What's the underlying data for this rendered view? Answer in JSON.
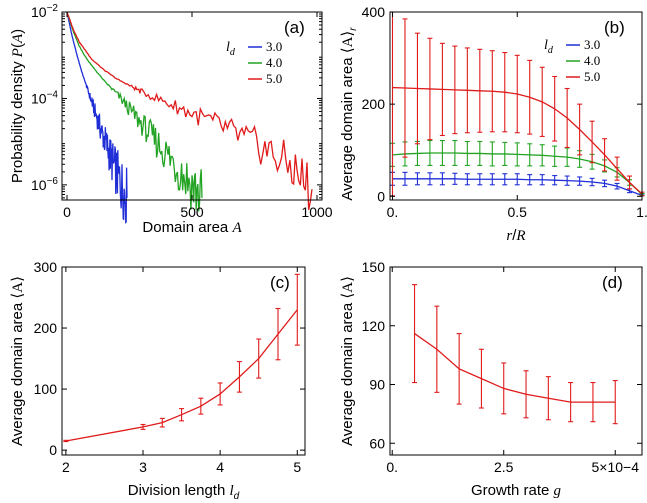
{
  "chart_data": [
    {
      "id": "a",
      "type": "line",
      "panel_label": "(a)",
      "xlabel": "Domain area A",
      "ylabel": "Probability density P(A)",
      "xlim": [
        -20,
        1020
      ],
      "ylim_log10": [
        -6.35,
        -2
      ],
      "y_scale": "log",
      "x_ticks": [
        0,
        500,
        1000
      ],
      "y_ticks": [
        {
          "label": "10−2",
          "exp": -2
        },
        {
          "label": "10−4",
          "exp": -4
        },
        {
          "label": "10−6",
          "exp": -6
        }
      ],
      "legend_title": "l_d",
      "legend_position": "top-right",
      "series": [
        {
          "name": "3.0",
          "color": "#1f2ed6",
          "x": [
            0,
            20,
            40,
            60,
            80,
            100,
            120,
            140,
            160,
            180,
            200,
            220,
            240
          ],
          "y_log10": [
            -2.0,
            -2.55,
            -3.0,
            -3.4,
            -3.75,
            -4.1,
            -4.45,
            -4.8,
            -5.1,
            -5.45,
            -5.75,
            -6.05,
            -6.3
          ]
        },
        {
          "name": "4.0",
          "color": "#23a323",
          "x": [
            0,
            25,
            50,
            75,
            100,
            150,
            200,
            250,
            300,
            350,
            400,
            450,
            500,
            540
          ],
          "y_log10": [
            -2.0,
            -2.45,
            -2.8,
            -3.05,
            -3.25,
            -3.6,
            -3.9,
            -4.25,
            -4.6,
            -4.95,
            -5.3,
            -5.65,
            -6.0,
            -6.3
          ]
        },
        {
          "name": "5.0",
          "color": "#e01b1b",
          "x": [
            0,
            25,
            50,
            75,
            100,
            150,
            200,
            250,
            300,
            400,
            500,
            600,
            700,
            800,
            900,
            980
          ],
          "y_log10": [
            -2.0,
            -2.4,
            -2.7,
            -2.9,
            -3.1,
            -3.35,
            -3.55,
            -3.7,
            -3.85,
            -4.1,
            -4.35,
            -4.6,
            -4.9,
            -5.2,
            -5.6,
            -6.1
          ]
        }
      ]
    },
    {
      "id": "b",
      "type": "line",
      "panel_label": "(b)",
      "xlabel": "r/R",
      "ylabel": "Average domain area ⟨A⟩r",
      "xlim": [
        -0.01,
        1.0
      ],
      "ylim": [
        -8,
        400
      ],
      "x_ticks": [
        {
          "value": 0,
          "label": "0."
        },
        {
          "value": 0.5,
          "label": "0.5"
        },
        {
          "value": 1.0,
          "label": "1."
        }
      ],
      "y_ticks": [
        0,
        200,
        400
      ],
      "legend_title": "l_d",
      "legend_position": "top-right",
      "series": [
        {
          "name": "3.0",
          "color": "#1f2ed6",
          "x": [
            0.0,
            0.05,
            0.1,
            0.15,
            0.2,
            0.25,
            0.3,
            0.35,
            0.4,
            0.45,
            0.5,
            0.55,
            0.6,
            0.65,
            0.7,
            0.75,
            0.8,
            0.85,
            0.9,
            0.95,
            1.0
          ],
          "y": [
            38,
            38,
            38,
            38,
            38,
            38,
            37,
            37,
            37,
            37,
            37,
            36,
            36,
            35,
            34,
            33,
            31,
            28,
            22,
            12,
            2
          ],
          "err": [
            14,
            14,
            13,
            13,
            13,
            12,
            12,
            12,
            12,
            12,
            12,
            11,
            11,
            10,
            10,
            9,
            8,
            7,
            6,
            4,
            1
          ]
        },
        {
          "name": "4.0",
          "color": "#23a323",
          "x": [
            0.0,
            0.05,
            0.1,
            0.15,
            0.2,
            0.25,
            0.3,
            0.35,
            0.4,
            0.45,
            0.5,
            0.55,
            0.6,
            0.65,
            0.7,
            0.75,
            0.8,
            0.85,
            0.9,
            0.95,
            1.0
          ],
          "y": [
            90,
            92,
            93,
            94,
            94,
            94,
            93,
            93,
            92,
            92,
            91,
            90,
            89,
            87,
            85,
            81,
            75,
            66,
            52,
            30,
            4
          ],
          "err": [
            25,
            26,
            26,
            27,
            27,
            27,
            26,
            26,
            26,
            25,
            25,
            24,
            23,
            22,
            20,
            18,
            16,
            13,
            10,
            6,
            2
          ]
        },
        {
          "name": "5.0",
          "color": "#e01b1b",
          "x": [
            0.0,
            0.05,
            0.1,
            0.15,
            0.2,
            0.25,
            0.3,
            0.35,
            0.4,
            0.45,
            0.5,
            0.55,
            0.6,
            0.65,
            0.7,
            0.75,
            0.8,
            0.85,
            0.9,
            0.95,
            1.0
          ],
          "y": [
            236,
            235,
            234,
            233,
            232,
            231,
            230,
            229,
            228,
            226,
            222,
            215,
            205,
            190,
            170,
            145,
            118,
            90,
            60,
            30,
            5
          ],
          "err": [
            235,
            150,
            120,
            110,
            100,
            95,
            92,
            90,
            88,
            86,
            84,
            80,
            75,
            70,
            64,
            55,
            45,
            35,
            25,
            14,
            4
          ]
        }
      ]
    },
    {
      "id": "c",
      "type": "line",
      "panel_label": "(c)",
      "xlabel": "Division length l_d",
      "ylabel": "Average domain area ⟨A⟩",
      "xlim": [
        1.95,
        5.1
      ],
      "ylim": [
        -8,
        300
      ],
      "x_ticks": [
        2,
        3,
        4,
        5
      ],
      "y_ticks": [
        0,
        100,
        200,
        300
      ],
      "series": [
        {
          "name": "",
          "color": "#e01b1b",
          "x": [
            2.0,
            3.0,
            3.25,
            3.5,
            3.75,
            4.0,
            4.25,
            4.5,
            4.75,
            5.0
          ],
          "y": [
            15,
            38,
            45,
            58,
            72,
            92,
            120,
            150,
            190,
            230
          ],
          "err": [
            1,
            4,
            7,
            10,
            13,
            18,
            25,
            32,
            42,
            58
          ]
        }
      ]
    },
    {
      "id": "d",
      "type": "line",
      "panel_label": "(d)",
      "xlabel": "Growth rate g",
      "ylabel": "Average domain area ⟨A⟩",
      "xlim": [
        -0.05,
        5.6
      ],
      "ylim": [
        54,
        150
      ],
      "x_ticks": [
        {
          "value": 0,
          "label": "0."
        },
        {
          "value": 2.5,
          "label": "2.5"
        },
        {
          "value": 5.0,
          "label": "5×10−4"
        }
      ],
      "y_ticks": [
        60,
        90,
        120,
        150
      ],
      "series": [
        {
          "name": "",
          "color": "#e01b1b",
          "x": [
            0.5,
            1.0,
            1.5,
            2.0,
            2.5,
            3.0,
            3.5,
            4.0,
            4.5,
            5.0
          ],
          "y": [
            116,
            108,
            98,
            93,
            88,
            85,
            83,
            81,
            81,
            81
          ],
          "err": [
            25,
            22,
            18,
            15,
            13,
            12,
            11,
            10,
            10,
            11
          ]
        }
      ]
    }
  ]
}
